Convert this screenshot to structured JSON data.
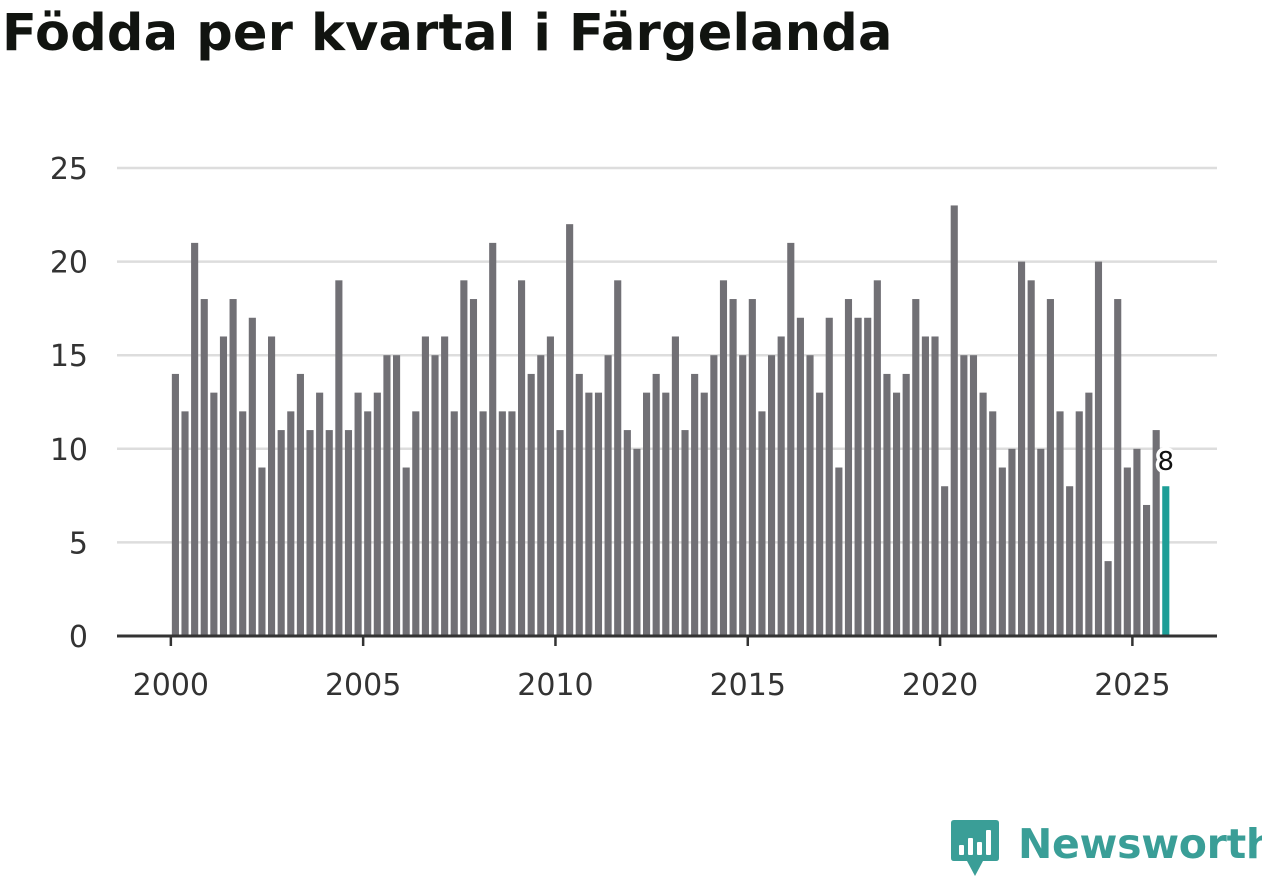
{
  "chart_data": {
    "type": "bar",
    "title": "Födda per kvartal i Färgelanda",
    "xlabel": "",
    "ylabel": "",
    "xlim": [
      1998.6,
      2027.2
    ],
    "ylim": [
      0,
      25
    ],
    "yticks": [
      0,
      5,
      10,
      15,
      20,
      25
    ],
    "xticks": [
      2000,
      2005,
      2010,
      2015,
      2020,
      2025
    ],
    "grid": true,
    "bar_color": "#717075",
    "highlight_color": "#1e9e97",
    "grid_color": "#dddddd",
    "axis_color": "#333333",
    "start_year": 2000,
    "quarters_per_year": 4,
    "values": [
      14,
      12,
      21,
      18,
      13,
      16,
      18,
      12,
      17,
      9,
      16,
      11,
      12,
      14,
      11,
      13,
      11,
      19,
      11,
      13,
      12,
      13,
      15,
      15,
      9,
      12,
      16,
      15,
      16,
      12,
      19,
      18,
      12,
      21,
      12,
      12,
      19,
      14,
      15,
      16,
      11,
      22,
      14,
      13,
      13,
      15,
      19,
      11,
      10,
      13,
      14,
      13,
      16,
      11,
      14,
      13,
      15,
      19,
      18,
      15,
      18,
      12,
      15,
      16,
      21,
      17,
      15,
      13,
      17,
      9,
      18,
      17,
      17,
      19,
      14,
      13,
      14,
      18,
      16,
      16,
      8,
      23,
      15,
      15,
      13,
      12,
      9,
      10,
      20,
      19,
      10,
      18,
      12,
      8,
      12,
      13,
      20,
      4,
      18,
      9,
      10,
      7,
      11,
      8
    ],
    "highlight_label": "8"
  },
  "brand": {
    "name": "Newsworthy",
    "color": "#3a9e97",
    "logo_icon": "newsworthy-logo-icon"
  }
}
